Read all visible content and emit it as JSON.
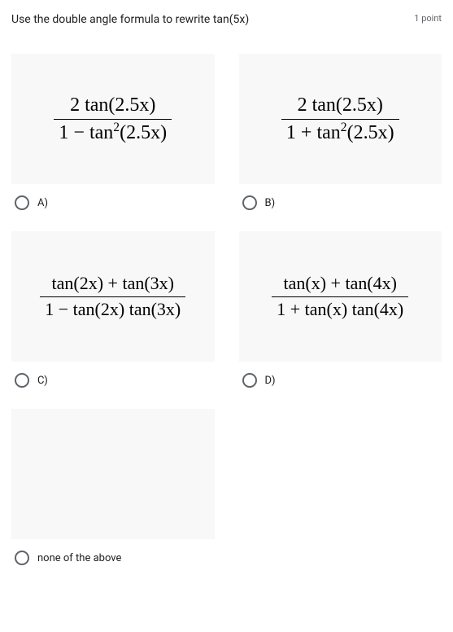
{
  "question": "Use the double angle formula to rewrite tan(5x)",
  "points": "1 point",
  "options": {
    "a": {
      "label": "A)",
      "numerator": "2 tan(2.5x)",
      "denominator_pre": "1 − tan",
      "denominator_exp": "2",
      "denominator_post": "(2.5x)"
    },
    "b": {
      "label": "B)",
      "numerator": "2 tan(2.5x)",
      "denominator_pre": "1 + tan",
      "denominator_exp": "2",
      "denominator_post": "(2.5x)"
    },
    "c": {
      "label": "C)",
      "numerator": "tan(2x) + tan(3x)",
      "denominator": "1 − tan(2x) tan(3x)"
    },
    "d": {
      "label": "D)",
      "numerator": "tan(x) + tan(4x)",
      "denominator": "1 + tan(x) tan(4x)"
    },
    "e": {
      "label": "none of the above"
    }
  },
  "styling": {
    "box_bg": "#f8f8f8",
    "radio_border": "#5f6368",
    "text_color": "#202124",
    "math_font": "Times New Roman",
    "math_fontsize": 24
  }
}
